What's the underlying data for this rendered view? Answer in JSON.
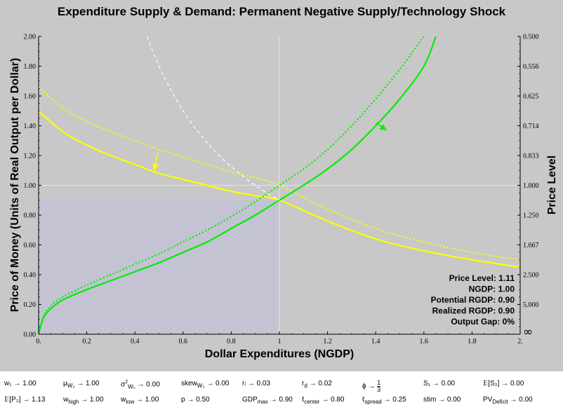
{
  "chart_data": {
    "type": "line",
    "title": "Expenditure Supply & Demand: Permanent Negative Supply/Technology Shock",
    "xlabel": "Dollar Expenditures (NGDP)",
    "ylabel": "Price of Money (Units of Real Output per Dollar)",
    "y2label": "Price Level",
    "xlim": [
      0,
      2
    ],
    "ylim": [
      0,
      2
    ],
    "x_ticks": [
      "0.",
      "0.2",
      "0.4",
      "0.6",
      "0.8",
      "1",
      "1.2",
      "1.4",
      "1.6",
      "1.8",
      "2."
    ],
    "y_ticks": [
      "0.00",
      "0.20",
      "0.40",
      "0.60",
      "0.80",
      "1.00",
      "1.20",
      "1.40",
      "1.60",
      "1.80",
      "2.00"
    ],
    "y2_ticks": [
      "0.500",
      "0.556",
      "0.625",
      "0.714",
      "0.833",
      "1.000",
      "1.250",
      "1.667",
      "2.500",
      "5.000",
      "∞"
    ],
    "grid": false,
    "shaded_region": {
      "x": [
        0,
        1
      ],
      "y": [
        0,
        0.9
      ],
      "color": "#c3c3d3"
    },
    "reference_lines": {
      "x": 1,
      "y": 1,
      "color": "#e6e6e6"
    },
    "series": [
      {
        "style": "dotted",
        "color": "#ffff00",
        "kind": "demand-initial",
        "x": [
          0,
          0.1,
          0.2,
          0.3,
          0.4,
          0.5,
          0.6,
          0.7,
          0.8,
          0.9,
          1.0,
          1.2,
          1.4,
          1.6,
          1.8,
          2.0
        ],
        "y": [
          1.66,
          1.52,
          1.43,
          1.36,
          1.3,
          1.24,
          1.19,
          1.14,
          1.09,
          1.05,
          1.0,
          0.84,
          0.71,
          0.62,
          0.55,
          0.5
        ]
      },
      {
        "style": "solid",
        "color": "#ffff00",
        "kind": "demand-new",
        "x": [
          0,
          0.1,
          0.2,
          0.3,
          0.4,
          0.5,
          0.6,
          0.7,
          0.8,
          0.9,
          1.0,
          1.2,
          1.4,
          1.6,
          1.8,
          2.0
        ],
        "y": [
          1.5,
          1.36,
          1.27,
          1.2,
          1.14,
          1.08,
          1.04,
          1.0,
          0.96,
          0.93,
          0.9,
          0.76,
          0.64,
          0.56,
          0.5,
          0.45
        ]
      },
      {
        "style": "dotted",
        "color": "#00ee00",
        "kind": "supply-initial",
        "x": [
          0,
          0.02,
          0.05,
          0.1,
          0.2,
          0.3,
          0.4,
          0.5,
          0.6,
          0.7,
          0.8,
          0.9,
          1.0,
          1.1,
          1.2,
          1.3,
          1.4,
          1.5,
          1.6
        ],
        "y": [
          0,
          0.12,
          0.19,
          0.25,
          0.33,
          0.4,
          0.47,
          0.54,
          0.62,
          0.7,
          0.79,
          0.89,
          1.0,
          1.11,
          1.24,
          1.4,
          1.58,
          1.78,
          2.0
        ]
      },
      {
        "style": "solid",
        "color": "#00ee00",
        "kind": "supply-new",
        "x": [
          0,
          0.02,
          0.05,
          0.1,
          0.2,
          0.3,
          0.4,
          0.5,
          0.6,
          0.7,
          0.8,
          0.9,
          1.0,
          1.1,
          1.2,
          1.3,
          1.4,
          1.5,
          1.6,
          1.65
        ],
        "y": [
          0,
          0.11,
          0.17,
          0.23,
          0.3,
          0.36,
          0.42,
          0.48,
          0.55,
          0.62,
          0.71,
          0.8,
          0.9,
          1.0,
          1.11,
          1.24,
          1.4,
          1.58,
          1.8,
          2.0
        ]
      },
      {
        "style": "dashed",
        "color": "#ffffff",
        "kind": "hyperbola",
        "x": [
          0.45,
          0.5,
          0.55,
          0.6,
          0.65,
          0.7,
          0.75,
          0.8,
          0.85,
          0.9,
          0.95,
          1.0
        ],
        "y": [
          2.0,
          1.8,
          1.64,
          1.5,
          1.385,
          1.286,
          1.2,
          1.125,
          1.06,
          1.0,
          0.947,
          0.9
        ]
      }
    ],
    "arrows": [
      {
        "from": [
          0.495,
          1.22
        ],
        "to": [
          0.48,
          1.1
        ],
        "color": "#ffff00"
      },
      {
        "from": [
          1.4,
          1.42
        ],
        "to": [
          1.445,
          1.37
        ],
        "color": "#00ee00"
      }
    ],
    "stats": [
      "Price Level: 1.11",
      "NGDP: 1.00",
      "Potential RGDP: 0.90",
      "Realized RGDP: 0.90",
      "Output Gap: 0%"
    ]
  },
  "params": [
    {
      "text": "w₁ → 1.00"
    },
    {
      "text": "μ_W₂ → 1.00"
    },
    {
      "text": "σ²_W₂ → 0.00"
    },
    {
      "text": "skew_W₂ → 0.00"
    },
    {
      "text": "rₗ → 0.03"
    },
    {
      "text": "r_d → 0.02"
    },
    {
      "text": "ϕ → 1/3"
    },
    {
      "text": "S₁ → 0.00"
    },
    {
      "text": "𝔼[S₂] → 0.00"
    },
    {
      "text": "𝔼[P₂] → 1.13"
    },
    {
      "text": "w_high → 1.00"
    },
    {
      "text": "w_low → 1.00"
    },
    {
      "text": "p → 0.50"
    },
    {
      "text": "GDP_max → 0.90"
    },
    {
      "text": "ℓ_center → 0.80"
    },
    {
      "text": "ℓ_spread → 0.25"
    },
    {
      "text": "stim → 0.00"
    },
    {
      "text": "PV_Deficit → 0.00"
    }
  ]
}
